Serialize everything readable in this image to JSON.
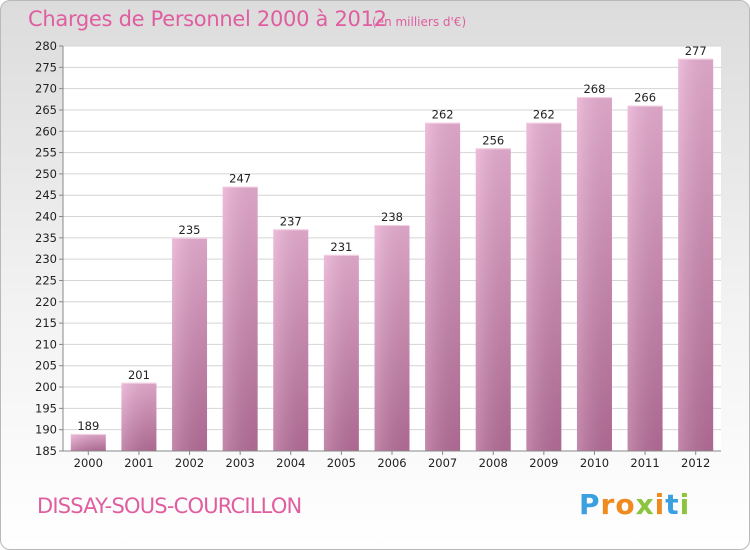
{
  "header": {
    "title": "Charges de Personnel 2000 à 2012",
    "unit": "(en milliers d'€)"
  },
  "footer": {
    "commune": "DISSAY-SOUS-COURCILLON",
    "logo_letters": [
      "P",
      "r",
      "o",
      "x",
      "i",
      "t",
      "i"
    ],
    "logo_colors": [
      "#3aa0e0",
      "#f08a1e",
      "#f08a1e",
      "#8bc43f",
      "#f08a1e",
      "#3aa0e0",
      "#8bc43f"
    ]
  },
  "chart_data": {
    "type": "bar",
    "title": "Charges de Personnel 2000 à 2012",
    "categories": [
      "2000",
      "2001",
      "2002",
      "2003",
      "2004",
      "2005",
      "2006",
      "2007",
      "2008",
      "2009",
      "2010",
      "2011",
      "2012"
    ],
    "values": [
      189,
      201,
      235,
      247,
      237,
      231,
      238,
      262,
      256,
      262,
      268,
      266,
      277
    ],
    "ylim": [
      185,
      280
    ],
    "yticks": [
      185,
      190,
      195,
      200,
      205,
      210,
      215,
      220,
      225,
      230,
      235,
      240,
      245,
      250,
      255,
      260,
      265,
      270,
      275,
      280
    ],
    "grid": true,
    "bar_color": "#d98fbb",
    "bar_color_light": "#e8aed2",
    "bar_color_dark": "#b66e99"
  }
}
